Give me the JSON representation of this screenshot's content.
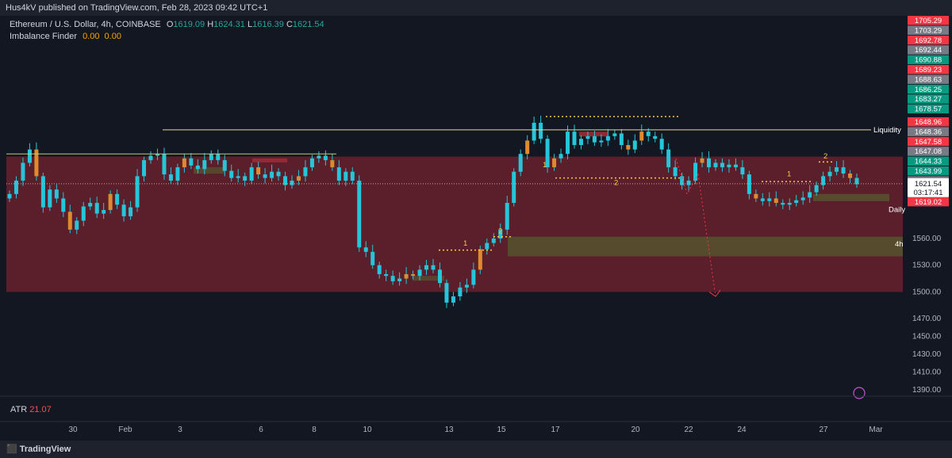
{
  "header": {
    "published": "Hus4kV published on TradingView.com, Feb 28, 2023 09:42 UTC+1"
  },
  "legend": {
    "symbol": "Ethereum / U.S. Dollar, 4h, COINBASE",
    "o_label": "O",
    "o": "1619.09",
    "h_label": "H",
    "h": "1624.31",
    "l_label": "L",
    "l": "1616.39",
    "c_label": "C",
    "c": "1621.54",
    "indicator": "Imbalance Finder",
    "ind_v1": "0.00",
    "ind_v2": "0.00"
  },
  "atr": {
    "label": "ATR",
    "value": "21.07"
  },
  "footer": {
    "brand": "TradingView"
  },
  "annotations": {
    "liquidity": "Liquidity",
    "daily": "Daily",
    "h4": "4h",
    "num1": "1",
    "num2": "2",
    "countdown": "03:17:41"
  },
  "colors": {
    "up": "#26c6da",
    "down": "#26c6da",
    "zone": "#5a1f2b",
    "olive": "#56502f",
    "dotted": "#f7c843",
    "red_label": "#f23645",
    "green_label": "#089981",
    "gray_label": "#787b86"
  },
  "chart_data": {
    "type": "candlestick",
    "symbol": "ETHUSD",
    "timeframe": "4h",
    "x_ticks": [
      "30",
      "Feb",
      "3",
      "6",
      "8",
      "10",
      "13",
      "15",
      "17",
      "20",
      "22",
      "24",
      "27",
      "Mar"
    ],
    "y_ticks": [
      1560.0,
      1530.0,
      1500.0,
      1470.0,
      1450.0,
      1430.0,
      1410.0,
      1390.0
    ],
    "ylim": [
      1375,
      1710
    ],
    "last_price": 1621.54,
    "price_labels": [
      {
        "value": "1705.29",
        "color": "red"
      },
      {
        "value": "1703.29",
        "color": "gray"
      },
      {
        "value": "1692.78",
        "color": "red"
      },
      {
        "value": "1692.44",
        "color": "gray"
      },
      {
        "value": "1690.88",
        "color": "green"
      },
      {
        "value": "1689.23",
        "color": "red"
      },
      {
        "value": "1688.63",
        "color": "gray"
      },
      {
        "value": "1686.25",
        "color": "green"
      },
      {
        "value": "1683.27",
        "color": "green"
      },
      {
        "value": "1678.57",
        "color": "green"
      },
      {
        "value": "1648.96",
        "color": "red"
      },
      {
        "value": "1648.36",
        "color": "gray"
      },
      {
        "value": "1647.58",
        "color": "red"
      },
      {
        "value": "1647.08",
        "color": "gray"
      },
      {
        "value": "1644.33",
        "color": "green"
      },
      {
        "value": "1643.99",
        "color": "green"
      },
      {
        "value": "1634.02",
        "color": "gray"
      },
      {
        "value": "1621.54",
        "color": "current"
      },
      {
        "value": "1619.02",
        "color": "red"
      }
    ],
    "zones": [
      {
        "name": "Daily",
        "from": 1500,
        "to": 1652
      },
      {
        "name": "4h",
        "from": 1540,
        "to": 1562
      }
    ],
    "liquidity_level": 1682,
    "closes": [
      1610,
      1625,
      1645,
      1660,
      1630,
      1595,
      1615,
      1605,
      1590,
      1570,
      1580,
      1596,
      1600,
      1588,
      1592,
      1610,
      1598,
      1585,
      1595,
      1630,
      1648,
      1653,
      1655,
      1632,
      1625,
      1640,
      1650,
      1642,
      1638,
      1648,
      1655,
      1648,
      1636,
      1628,
      1630,
      1625,
      1640,
      1632,
      1628,
      1635,
      1630,
      1620,
      1625,
      1630,
      1640,
      1650,
      1653,
      1648,
      1640,
      1625,
      1635,
      1625,
      1550,
      1545,
      1530,
      1520,
      1518,
      1512,
      1515,
      1520,
      1518,
      1525,
      1530,
      1525,
      1510,
      1488,
      1495,
      1505,
      1508,
      1525,
      1548,
      1555,
      1560,
      1570,
      1600,
      1635,
      1655,
      1670,
      1690,
      1672,
      1640,
      1650,
      1655,
      1680,
      1665,
      1672,
      1675,
      1668,
      1670,
      1675,
      1678,
      1665,
      1660,
      1670,
      1680,
      1675,
      1672,
      1660,
      1640,
      1630,
      1620,
      1625,
      1645,
      1650,
      1640,
      1645,
      1640,
      1643,
      1640,
      1632,
      1610,
      1605,
      1602,
      1605,
      1600,
      1598,
      1600,
      1603,
      1606,
      1612,
      1620,
      1630,
      1635,
      1640,
      1633,
      1628,
      1621
    ]
  }
}
